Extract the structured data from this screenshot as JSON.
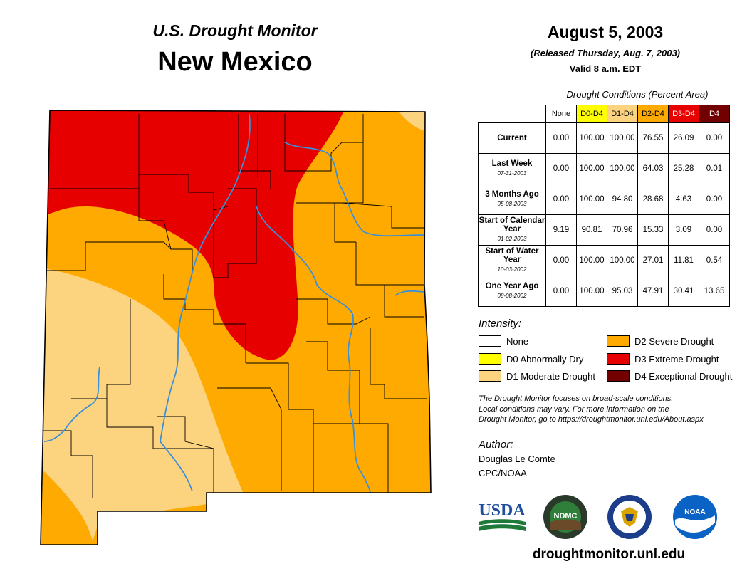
{
  "header": {
    "brand": "U.S. Drought Monitor",
    "state": "New Mexico",
    "date": "August 5, 2003",
    "released": "(Released Thursday, Aug. 7, 2003)",
    "valid": "Valid 8 a.m. EDT"
  },
  "table": {
    "caption": "Drought Conditions (Percent Area)",
    "columns": [
      "None",
      "D0-D4",
      "D1-D4",
      "D2-D4",
      "D3-D4",
      "D4"
    ],
    "rows": [
      {
        "label": "Current",
        "date": "",
        "values": [
          "0.00",
          "100.00",
          "100.00",
          "76.55",
          "26.09",
          "0.00"
        ]
      },
      {
        "label": "Last Week",
        "date": "07-31-2003",
        "values": [
          "0.00",
          "100.00",
          "100.00",
          "64.03",
          "25.28",
          "0.01"
        ]
      },
      {
        "label": "3 Months Ago",
        "date": "05-08-2003",
        "values": [
          "0.00",
          "100.00",
          "94.80",
          "28.68",
          "4.63",
          "0.00"
        ]
      },
      {
        "label": "Start of Calendar Year",
        "date": "01-02-2003",
        "values": [
          "9.19",
          "90.81",
          "70.96",
          "15.33",
          "3.09",
          "0.00"
        ]
      },
      {
        "label": "Start of Water Year",
        "date": "10-03-2002",
        "values": [
          "0.00",
          "100.00",
          "100.00",
          "27.01",
          "11.81",
          "0.54"
        ]
      },
      {
        "label": "One Year Ago",
        "date": "08-08-2002",
        "values": [
          "0.00",
          "100.00",
          "95.03",
          "47.91",
          "30.41",
          "13.65"
        ]
      }
    ]
  },
  "legend": {
    "heading": "Intensity:",
    "items": [
      {
        "label": "None",
        "color": "#ffffff"
      },
      {
        "label": "D0 Abnormally Dry",
        "color": "#ffff00"
      },
      {
        "label": "D1 Moderate Drought",
        "color": "#fcd37f"
      },
      {
        "label": "D2 Severe Drought",
        "color": "#ffaa00"
      },
      {
        "label": "D3 Extreme Drought",
        "color": "#e60000"
      },
      {
        "label": "D4 Exceptional Drought",
        "color": "#730000"
      }
    ]
  },
  "note": {
    "line1": "The Drought Monitor focuses on broad-scale conditions.",
    "line2": "Local conditions may vary. For more information on the",
    "line3": "Drought Monitor, go to https://droughtmonitor.unl.edu/About.aspx"
  },
  "author": {
    "heading": "Author:",
    "name": "Douglas Le Comte",
    "org": "CPC/NOAA"
  },
  "logos": {
    "usda": "USDA",
    "ndmc": "NDMC",
    "noaa": "NOAA"
  },
  "website": "droughtmonitor.unl.edu",
  "colors": {
    "d1": "#fcd37f",
    "d2": "#ffaa00",
    "d3": "#e60000",
    "river": "#3a8fd9"
  }
}
